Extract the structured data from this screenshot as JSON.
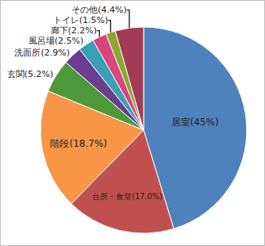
{
  "chart_data": {
    "type": "pie",
    "categories": [
      "居室",
      "台所・食堂",
      "階段",
      "玄関",
      "洗面所",
      "風呂場",
      "廊下",
      "トイレ",
      "その他"
    ],
    "values": [
      45,
      17.0,
      18.7,
      5.2,
      2.9,
      2.5,
      2.2,
      1.5,
      4.4
    ],
    "value_labels": [
      "居室(45%)",
      "台所・食堂(17.0%)",
      "階段(18.7%)",
      "玄関(5.2%)",
      "洗面所(2.9%)",
      "風呂場(2.5%)",
      "廊下(2.2%)",
      "トイレ(1.5%)",
      "その他(4.4%)"
    ],
    "colors": [
      "#4f81bd",
      "#c0504d",
      "#f79646",
      "#4e9a3a",
      "#6a3d8f",
      "#3aa0b5",
      "#d9467e",
      "#8aa830",
      "#a33b56"
    ]
  }
}
